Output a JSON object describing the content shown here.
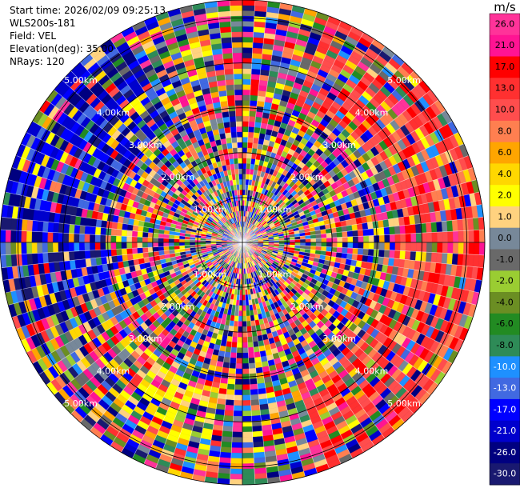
{
  "header": {
    "start_time_label": "Start time:",
    "start_time": "2026/02/09 09:25:13",
    "station": "WLS200s-181",
    "field_label": "Field:",
    "field": "VEL",
    "elevation_label": "Elevation(deg):",
    "elevation": "35.00",
    "nrays_label": "NRays:",
    "nrays": "120"
  },
  "chart_data": {
    "type": "heatmap",
    "projection": "polar",
    "field": "VEL",
    "units": "m/s",
    "nrays": 120,
    "grid": true,
    "range_rings_km": [
      1.0,
      2.0,
      3.0,
      4.0,
      5.0
    ],
    "range_ring_labels": [
      "1.00km",
      "2.00km",
      "3.00km",
      "4.00km",
      "5.00km"
    ],
    "max_range_km": 5.4,
    "colorbar": {
      "ticks": [
        "26.0",
        "21.0",
        "17.0",
        "13.0",
        "10.0",
        "8.0",
        "6.0",
        "4.0",
        "2.0",
        "1.0",
        "0.0",
        "-1.0",
        "-2.0",
        "-4.0",
        "-6.0",
        "-8.0",
        "-10.0",
        "-13.0",
        "-17.0",
        "-21.0",
        "-26.0",
        "-30.0"
      ],
      "colors": [
        "#ff3399",
        "#ff1493",
        "#ff0000",
        "#ff3030",
        "#ff4d4d",
        "#ff7f50",
        "#ffa500",
        "#ffd700",
        "#ffff00",
        "#ffd27f",
        "#778899",
        "#696969",
        "#9acd32",
        "#6b8e23",
        "#228b22",
        "#2e8b57",
        "#1e90ff",
        "#4169e1",
        "#0000ff",
        "#0000cd",
        "#000080",
        "#191970"
      ]
    }
  }
}
